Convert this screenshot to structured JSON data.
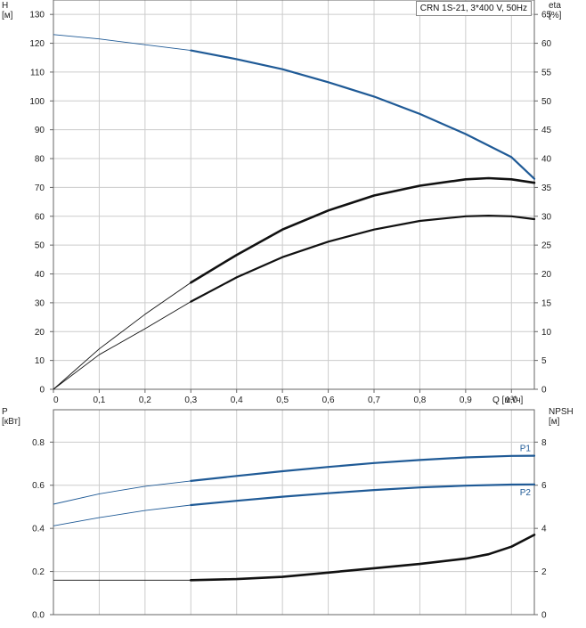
{
  "title": "CRN 1S-21, 3*400 V, 50Hz",
  "colors": {
    "blue": "#1f5a96",
    "black": "#111111",
    "grid": "#cccccc",
    "frame": "#666666"
  },
  "chart_data": [
    {
      "type": "line",
      "name": "upper",
      "xlabel": "Q [м³/ч]",
      "xlim": [
        0,
        1.05
      ],
      "x_ticks": [
        "0",
        "0,1",
        "0,2",
        "0,3",
        "0,4",
        "0,5",
        "0,6",
        "0,7",
        "0,8",
        "0,9",
        "1,0"
      ],
      "ylabel_left": [
        "H",
        "[м]"
      ],
      "ylim_left": [
        0,
        135
      ],
      "y_ticks_left": [
        "0",
        "10",
        "20",
        "30",
        "40",
        "50",
        "60",
        "70",
        "80",
        "90",
        "100",
        "110",
        "120",
        "130"
      ],
      "ylabel_right": [
        "eta",
        "[%]"
      ],
      "ylim_right": [
        0,
        67.5
      ],
      "y_ticks_right": [
        "0",
        "5",
        "10",
        "15",
        "20",
        "25",
        "30",
        "35",
        "40",
        "45",
        "50",
        "55",
        "60",
        "65"
      ],
      "grid": true,
      "series": [
        {
          "axis": "left",
          "color": "blue",
          "x": [
            0,
            0.1,
            0.2,
            0.3,
            0.4,
            0.5,
            0.6,
            0.7,
            0.8,
            0.9,
            1.0,
            1.05
          ],
          "y": [
            123,
            121.5,
            119.5,
            117.5,
            114.5,
            111,
            106.5,
            101.5,
            95.5,
            88.5,
            80.5,
            73
          ],
          "bold_from": 0.3
        },
        {
          "axis": "right",
          "color": "black",
          "x": [
            0,
            0.1,
            0.2,
            0.3,
            0.4,
            0.5,
            0.6,
            0.7,
            0.8,
            0.9,
            0.95,
            1.0,
            1.05
          ],
          "y": [
            0,
            7,
            13,
            18.5,
            23.3,
            27.7,
            31,
            33.6,
            35.3,
            36.4,
            36.6,
            36.4,
            35.8
          ],
          "bold_from": 0.3
        },
        {
          "axis": "right",
          "color": "black",
          "x": [
            0,
            0.1,
            0.2,
            0.3,
            0.4,
            0.5,
            0.6,
            0.7,
            0.8,
            0.9,
            0.95,
            1.0,
            1.05
          ],
          "y": [
            0,
            6,
            10.5,
            15.2,
            19.4,
            22.9,
            25.6,
            27.7,
            29.2,
            30,
            30.1,
            30,
            29.5
          ],
          "bold_from": 0.3
        }
      ]
    },
    {
      "type": "line",
      "name": "lower",
      "xlim": [
        0,
        1.05
      ],
      "ylabel_left": [
        "P",
        "[кВт]"
      ],
      "ylim_left": [
        0,
        0.95
      ],
      "y_ticks_left": [
        "0.0",
        "0.2",
        "0.4",
        "0.6",
        "0.8"
      ],
      "y_tick_values_left": [
        0,
        0.2,
        0.4,
        0.6,
        0.8
      ],
      "ylabel_right": [
        "NPSH",
        "[м]"
      ],
      "ylim_right": [
        0,
        9.5
      ],
      "y_ticks_right": [
        "0",
        "2",
        "4",
        "6",
        "8"
      ],
      "y_tick_values_right": [
        0,
        2,
        4,
        6,
        8
      ],
      "grid": true,
      "series": [
        {
          "name": "P1",
          "axis": "left",
          "color": "blue",
          "x": [
            0,
            0.1,
            0.2,
            0.3,
            0.4,
            0.5,
            0.6,
            0.7,
            0.8,
            0.9,
            1.0,
            1.05
          ],
          "y": [
            0.512,
            0.56,
            0.595,
            0.62,
            0.643,
            0.665,
            0.685,
            0.703,
            0.717,
            0.729,
            0.736,
            0.737
          ],
          "bold_from": 0.3
        },
        {
          "name": "P2",
          "axis": "left",
          "color": "blue",
          "x": [
            0,
            0.1,
            0.2,
            0.3,
            0.4,
            0.5,
            0.6,
            0.7,
            0.8,
            0.9,
            1.0,
            1.05
          ],
          "y": [
            0.412,
            0.45,
            0.483,
            0.508,
            0.528,
            0.547,
            0.563,
            0.578,
            0.59,
            0.598,
            0.603,
            0.604
          ],
          "bold_from": 0.3
        },
        {
          "axis": "right",
          "color": "black",
          "x": [
            0,
            0.1,
            0.2,
            0.3,
            0.4,
            0.5,
            0.6,
            0.7,
            0.8,
            0.9,
            0.95,
            1.0,
            1.05
          ],
          "y": [
            1.6,
            1.6,
            1.6,
            1.6,
            1.65,
            1.75,
            1.95,
            2.15,
            2.35,
            2.6,
            2.8,
            3.15,
            3.7
          ],
          "bold_from": 0.3
        }
      ]
    }
  ]
}
